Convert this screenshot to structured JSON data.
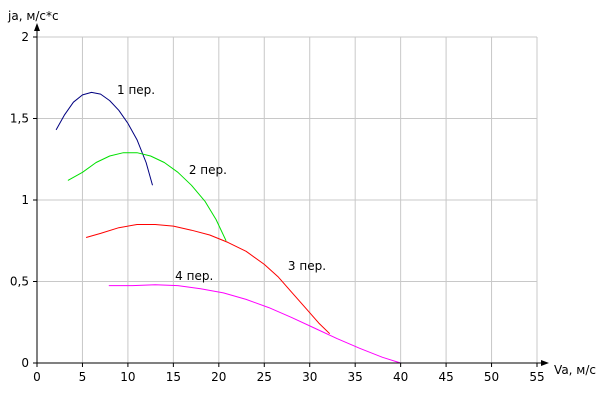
{
  "chart_data": {
    "type": "line",
    "title": "",
    "xlabel": "Va, м/с",
    "ylabel": "ja, м/с*с",
    "xlim": [
      0,
      55
    ],
    "ylim": [
      0,
      2
    ],
    "xticks": [
      0,
      5,
      10,
      15,
      20,
      25,
      30,
      35,
      40,
      45,
      50,
      55
    ],
    "yticks": [
      {
        "value": 0,
        "label": "0"
      },
      {
        "value": 0.5,
        "label": "0,5"
      },
      {
        "value": 1,
        "label": "1"
      },
      {
        "value": 1.5,
        "label": "1,5"
      },
      {
        "value": 2,
        "label": "2"
      }
    ],
    "grid": true,
    "series": [
      {
        "name": "1 пер.",
        "color": "#000080",
        "points": [
          [
            2.1,
            1.43
          ],
          [
            3.0,
            1.52
          ],
          [
            4.0,
            1.6
          ],
          [
            5.0,
            1.645
          ],
          [
            6.0,
            1.66
          ],
          [
            7.0,
            1.65
          ],
          [
            8.0,
            1.61
          ],
          [
            9.0,
            1.55
          ],
          [
            10.0,
            1.47
          ],
          [
            11.0,
            1.37
          ],
          [
            12.0,
            1.23
          ],
          [
            12.7,
            1.09
          ]
        ],
        "label_at": [
          8.8,
          1.65
        ]
      },
      {
        "name": "2 пер.",
        "color": "#00e000",
        "points": [
          [
            3.4,
            1.12
          ],
          [
            5.0,
            1.17
          ],
          [
            6.5,
            1.23
          ],
          [
            8.0,
            1.27
          ],
          [
            9.5,
            1.29
          ],
          [
            11.0,
            1.29
          ],
          [
            12.5,
            1.27
          ],
          [
            14.0,
            1.23
          ],
          [
            15.5,
            1.17
          ],
          [
            17.0,
            1.09
          ],
          [
            18.5,
            0.99
          ],
          [
            19.7,
            0.88
          ],
          [
            20.8,
            0.75
          ]
        ],
        "label_at": [
          16.7,
          1.16
        ]
      },
      {
        "name": "3 пер.",
        "color": "#ff0000",
        "points": [
          [
            5.4,
            0.77
          ],
          [
            7.0,
            0.795
          ],
          [
            9.0,
            0.83
          ],
          [
            11.0,
            0.85
          ],
          [
            13.0,
            0.85
          ],
          [
            15.0,
            0.84
          ],
          [
            17.0,
            0.815
          ],
          [
            19.0,
            0.785
          ],
          [
            21.0,
            0.74
          ],
          [
            23.0,
            0.685
          ],
          [
            25.0,
            0.605
          ],
          [
            26.5,
            0.53
          ],
          [
            28.0,
            0.435
          ],
          [
            29.5,
            0.34
          ],
          [
            31.0,
            0.245
          ],
          [
            32.2,
            0.18
          ]
        ],
        "label_at": [
          27.6,
          0.57
        ]
      },
      {
        "name": "4 пер.",
        "color": "#ff00ff",
        "points": [
          [
            7.9,
            0.475
          ],
          [
            10.5,
            0.475
          ],
          [
            13.0,
            0.48
          ],
          [
            15.5,
            0.475
          ],
          [
            18.0,
            0.455
          ],
          [
            20.5,
            0.43
          ],
          [
            23.0,
            0.39
          ],
          [
            25.5,
            0.34
          ],
          [
            28.0,
            0.28
          ],
          [
            30.5,
            0.215
          ],
          [
            33.0,
            0.15
          ],
          [
            35.5,
            0.09
          ],
          [
            38.0,
            0.035
          ],
          [
            40.0,
            0.0
          ]
        ],
        "label_at": [
          15.2,
          0.51
        ]
      }
    ]
  }
}
